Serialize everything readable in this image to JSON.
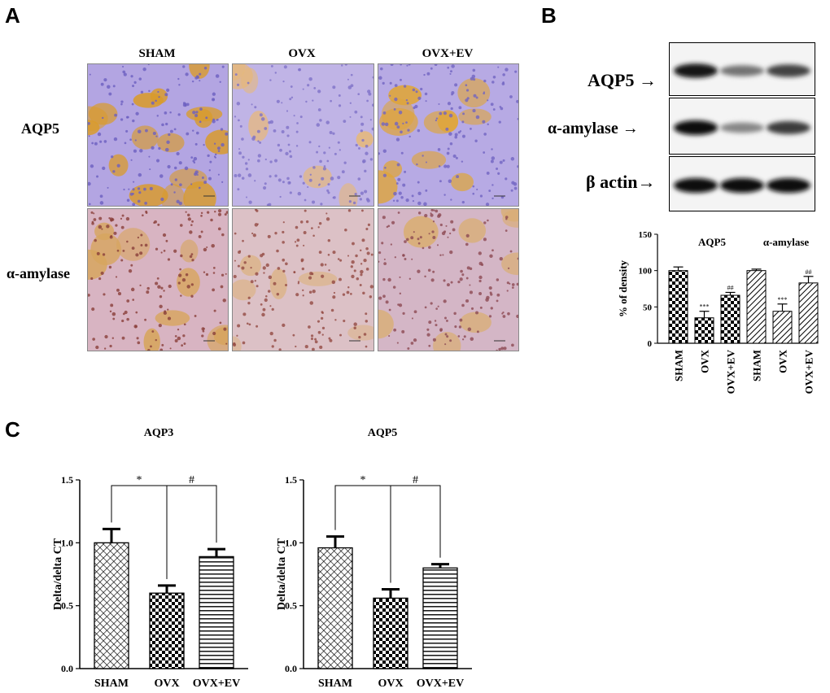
{
  "panels": {
    "a": "A",
    "b": "B",
    "c": "C"
  },
  "panel_a": {
    "columns": [
      "SHAM",
      "OVX",
      "OVX+EV"
    ],
    "rows": [
      "AQP5",
      "α-amylase"
    ]
  },
  "panel_b": {
    "blot_rows": [
      {
        "label": "AQP5 →",
        "bands": [
          0.95,
          0.45,
          0.7
        ]
      },
      {
        "label": "α-amylase →",
        "bands": [
          1.0,
          0.35,
          0.75
        ]
      },
      {
        "label": "β actin→",
        "bands": [
          1.0,
          1.0,
          1.0
        ]
      }
    ]
  },
  "chart_data": [
    {
      "id": "density",
      "type": "bar",
      "title": "",
      "xlabel": "",
      "ylabel": "% of density",
      "ylim": [
        0,
        150
      ],
      "yticks": [
        0,
        50,
        100,
        150
      ],
      "group_labels": [
        "AQP5",
        "α-amylase"
      ],
      "categories": [
        "SHAM",
        "OVX",
        "OVX+EV",
        "SHAM",
        "OVX",
        "OVX+EV"
      ],
      "values": [
        100,
        35,
        66,
        100,
        44,
        83
      ],
      "errors": [
        5,
        9,
        4,
        2,
        10,
        9
      ],
      "annotations": [
        "",
        "***",
        "##",
        "",
        "***",
        "##"
      ],
      "patterns": [
        "check",
        "check",
        "check",
        "diag",
        "diag",
        "diag"
      ]
    },
    {
      "id": "aqp3",
      "type": "bar",
      "title": "AQP3",
      "xlabel": "",
      "ylabel": "Delta/delta CT",
      "ylim": [
        0,
        1.5
      ],
      "yticks": [
        "0.0",
        "0.5",
        "1.0",
        "1.5"
      ],
      "categories": [
        "SHAM",
        "OVX",
        "OVX+EV"
      ],
      "values": [
        1.0,
        0.6,
        0.89
      ],
      "errors": [
        0.11,
        0.06,
        0.06
      ],
      "patterns": [
        "cross",
        "check",
        "hlines"
      ],
      "significance": [
        {
          "from": 0,
          "to": 1,
          "label": "*"
        },
        {
          "from": 1,
          "to": 2,
          "label": "#"
        }
      ]
    },
    {
      "id": "aqp5",
      "type": "bar",
      "title": "AQP5",
      "xlabel": "",
      "ylabel": "Delta/delta CT",
      "ylim": [
        0,
        1.5
      ],
      "yticks": [
        "0.0",
        "0.5",
        "1.0",
        "1.5"
      ],
      "categories": [
        "SHAM",
        "OVX",
        "OVX+EV"
      ],
      "values": [
        0.96,
        0.56,
        0.8
      ],
      "errors": [
        0.09,
        0.07,
        0.03
      ],
      "patterns": [
        "cross",
        "check",
        "hlines"
      ],
      "significance": [
        {
          "from": 0,
          "to": 1,
          "label": "*"
        },
        {
          "from": 1,
          "to": 2,
          "label": "#"
        }
      ]
    }
  ]
}
